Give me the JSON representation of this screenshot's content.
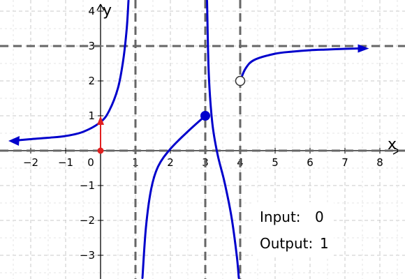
{
  "chart_data": {
    "type": "line",
    "title": "",
    "xlabel": "x",
    "ylabel": "y",
    "xlim": [
      -2.9,
      8.7
    ],
    "ylim": [
      -3.65,
      4.3
    ],
    "grid": true,
    "x_ticks": [
      "−2",
      "−1",
      "0",
      "1",
      "2",
      "3",
      "4",
      "5",
      "6",
      "7",
      "8"
    ],
    "x_tick_values": [
      -2,
      -1,
      0,
      1,
      2,
      3,
      4,
      5,
      6,
      7,
      8
    ],
    "y_ticks": [
      "−3",
      "−2",
      "−1",
      "1",
      "2",
      "3",
      "4"
    ],
    "y_tick_values": [
      -3,
      -2,
      -1,
      1,
      2,
      3,
      4
    ],
    "asymptotes": {
      "vertical": [
        1,
        3,
        4
      ],
      "horizontal": [
        0,
        3
      ]
    },
    "series": [
      {
        "color": "#0000cc",
        "points": [
          [
            -2.35,
            0.3
          ],
          [
            -2,
            0.33
          ],
          [
            -1.5,
            0.37
          ],
          [
            -1,
            0.42
          ],
          [
            -0.5,
            0.54
          ],
          [
            0,
            0.82
          ],
          [
            0.25,
            1.15
          ],
          [
            0.5,
            1.8
          ],
          [
            0.65,
            2.6
          ],
          [
            0.75,
            3.5
          ],
          [
            0.8,
            4.3
          ]
        ]
      },
      {
        "color": "#0000cc",
        "points": [
          [
            1.2,
            -3.65
          ],
          [
            1.3,
            -2.2
          ],
          [
            1.45,
            -1.1
          ],
          [
            1.65,
            -0.45
          ],
          [
            2,
            0.05
          ],
          [
            2.5,
            0.55
          ],
          [
            3,
            1.0
          ]
        ]
      },
      {
        "color": "#0000cc",
        "points": [
          [
            3.05,
            4.3
          ],
          [
            3.1,
            2.2
          ],
          [
            3.2,
            0.8
          ],
          [
            3.35,
            -0.1
          ],
          [
            3.55,
            -0.9
          ],
          [
            3.75,
            -1.9
          ],
          [
            3.9,
            -3.0
          ],
          [
            3.96,
            -3.65
          ]
        ]
      },
      {
        "color": "#0000cc",
        "points": [
          [
            4.0,
            2.0
          ],
          [
            4.15,
            2.35
          ],
          [
            4.4,
            2.6
          ],
          [
            5,
            2.78
          ],
          [
            5.5,
            2.84
          ],
          [
            6,
            2.88
          ],
          [
            6.5,
            2.9
          ],
          [
            7,
            2.92
          ],
          [
            7.4,
            2.93
          ]
        ]
      }
    ],
    "arrowheads": [
      {
        "x": -2.4,
        "y": 0.3,
        "direction": "left"
      },
      {
        "x": 7.45,
        "y": 2.93,
        "direction": "right"
      }
    ],
    "points": [
      {
        "x": 3,
        "y": 1,
        "style": "closed",
        "color": "#0000cc"
      },
      {
        "x": 4,
        "y": 2,
        "style": "open",
        "color": "#0000cc"
      },
      {
        "x": 0,
        "y": 0,
        "style": "closed",
        "color": "#e02020"
      }
    ],
    "vector": {
      "from": [
        0,
        0
      ],
      "to": [
        0,
        1
      ],
      "color": "#e02020"
    }
  },
  "panel": {
    "input_label": "Input:",
    "input_value": "0",
    "output_label": "Output:",
    "output_value": "1"
  }
}
